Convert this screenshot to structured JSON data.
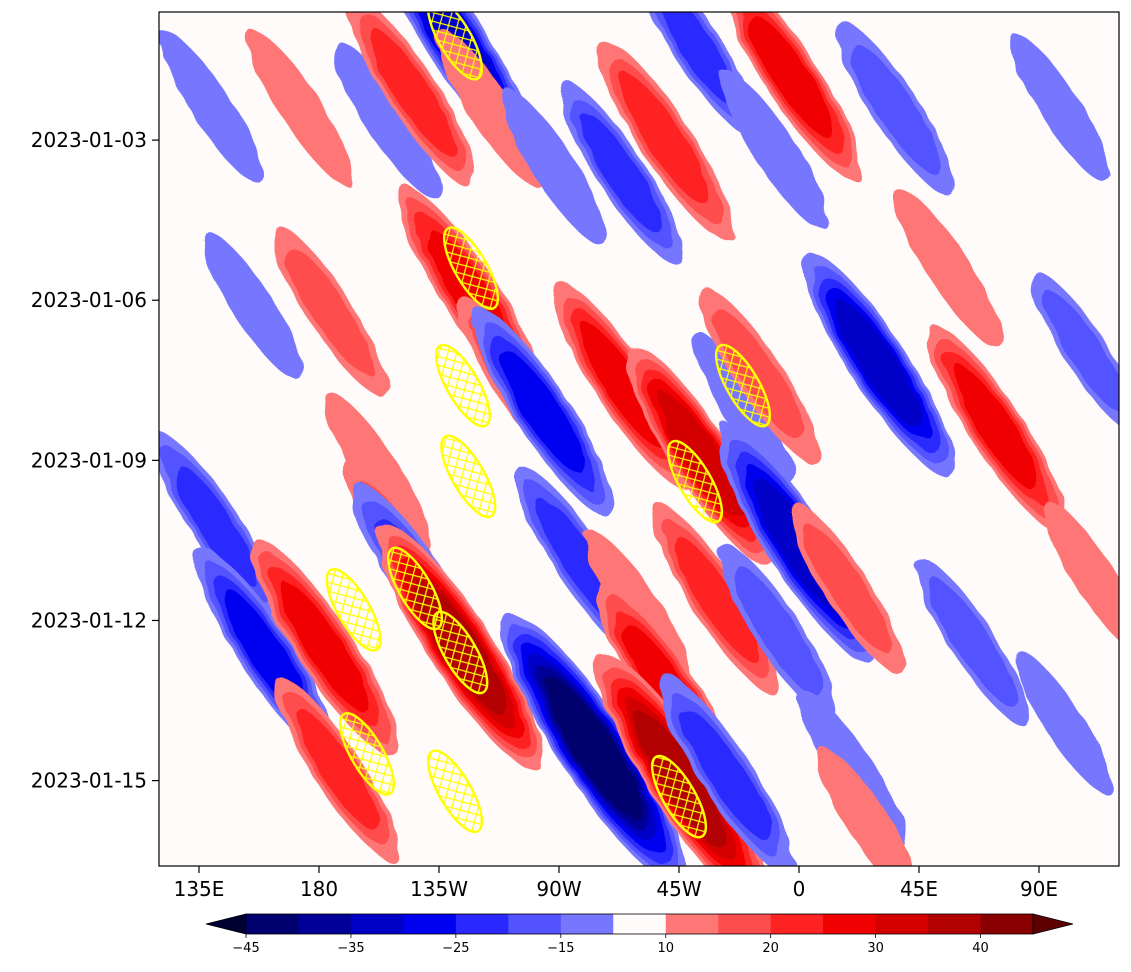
{
  "chart_data": {
    "type": "heatmap",
    "title": "",
    "xlabel": "",
    "ylabel": "",
    "x_tick_labels": [
      "135E",
      "180",
      "135W",
      "90W",
      "45W",
      "0",
      "45E",
      "90E"
    ],
    "x_tick_lon": [
      135,
      180,
      225,
      270,
      315,
      360,
      405,
      450
    ],
    "x_range_lon": [
      120,
      480
    ],
    "y_tick_labels": [
      "2023-01-03",
      "2023-01-06",
      "2023-01-09",
      "2023-01-12",
      "2023-01-15"
    ],
    "y_tick_day": [
      3,
      6,
      9,
      12,
      15
    ],
    "y_range_day": [
      0.6,
      16.6
    ],
    "colorbar": {
      "levels": [
        -45,
        -40,
        -35,
        -30,
        -25,
        -20,
        -15,
        -10,
        10,
        15,
        20,
        25,
        30,
        35,
        40,
        45
      ],
      "tick_labels": [
        "−45",
        "−35",
        "−25",
        "−15",
        "10",
        "20",
        "30",
        "40"
      ],
      "tick_values": [
        -45,
        -35,
        -25,
        -15,
        10,
        20,
        30,
        40
      ],
      "extend": "both",
      "colors": [
        "#000033",
        "#00006e",
        "#000099",
        "#0000c8",
        "#0000f0",
        "#2929ff",
        "#5252ff",
        "#7676ff",
        "#fffbfb",
        "#ff7676",
        "#ff4d4d",
        "#ff2222",
        "#f00000",
        "#d40000",
        "#b30000",
        "#8a0000",
        "#5c0000"
      ]
    },
    "hatch_color": "#ffff00",
    "features": [
      {
        "lon": 140,
        "day": 2.4,
        "value": -12
      },
      {
        "lon": 155,
        "day": 6.1,
        "value": -12
      },
      {
        "lon": 141,
        "day": 10.2,
        "value": -20
      },
      {
        "lon": 160,
        "day": 12.6,
        "value": -26
      },
      {
        "lon": 173,
        "day": 2.4,
        "value": 13
      },
      {
        "lon": 184,
        "day": 6.2,
        "value": 17
      },
      {
        "lon": 182,
        "day": 12.5,
        "value": 28
      },
      {
        "lon": 187,
        "day": 14.8,
        "value": 20
      },
      {
        "lon": 202,
        "day": 9.2,
        "value": 14
      },
      {
        "lon": 211,
        "day": 10.6,
        "value": 16
      },
      {
        "lon": 205,
        "day": 2.6,
        "value": -14
      },
      {
        "lon": 218,
        "day": 11.3,
        "value": -24
      },
      {
        "lon": 215,
        "day": 2.1,
        "value": 22
      },
      {
        "lon": 232,
        "day": 1.2,
        "value": -32
      },
      {
        "lon": 237,
        "day": 5.9,
        "value": 28
      },
      {
        "lon": 233,
        "day": 12.5,
        "value": 36
      },
      {
        "lon": 244,
        "day": 2.4,
        "value": 14
      },
      {
        "lon": 253,
        "day": 7.5,
        "value": 16
      },
      {
        "lon": 264,
        "day": 8.1,
        "value": -26
      },
      {
        "lon": 268,
        "day": 3.5,
        "value": -14
      },
      {
        "lon": 278,
        "day": 10.9,
        "value": -22
      },
      {
        "lon": 283,
        "day": 14.4,
        "value": -42
      },
      {
        "lon": 294,
        "day": 7.6,
        "value": 26
      },
      {
        "lon": 300,
        "day": 11.8,
        "value": 14
      },
      {
        "lon": 311,
        "day": 13.3,
        "value": 28
      },
      {
        "lon": 316,
        "day": 15.0,
        "value": 38
      },
      {
        "lon": 293,
        "day": 3.6,
        "value": -20
      },
      {
        "lon": 310,
        "day": 3.0,
        "value": 24
      },
      {
        "lon": 323,
        "day": 8.9,
        "value": 30
      },
      {
        "lon": 321,
        "day": 1.2,
        "value": -20
      },
      {
        "lon": 329,
        "day": 11.6,
        "value": 22
      },
      {
        "lon": 333,
        "day": 14.9,
        "value": -24
      },
      {
        "lon": 339,
        "day": 8.0,
        "value": -12
      },
      {
        "lon": 345,
        "day": 7.4,
        "value": 18
      },
      {
        "lon": 351,
        "day": 3.2,
        "value": -14
      },
      {
        "lon": 357,
        "day": 1.8,
        "value": 26
      },
      {
        "lon": 360,
        "day": 10.6,
        "value": -34
      },
      {
        "lon": 352,
        "day": 12.2,
        "value": -18
      },
      {
        "lon": 378,
        "day": 11.4,
        "value": 17
      },
      {
        "lon": 380,
        "day": 14.8,
        "value": -14
      },
      {
        "lon": 386,
        "day": 15.8,
        "value": 13
      },
      {
        "lon": 390,
        "day": 7.2,
        "value": -30
      },
      {
        "lon": 396,
        "day": 2.4,
        "value": -18
      },
      {
        "lon": 416,
        "day": 5.4,
        "value": 14
      },
      {
        "lon": 425,
        "day": 12.4,
        "value": -16
      },
      {
        "lon": 434,
        "day": 8.4,
        "value": 26
      },
      {
        "lon": 458,
        "day": 2.4,
        "value": -12
      },
      {
        "lon": 468,
        "day": 7.0,
        "value": -15
      },
      {
        "lon": 471,
        "day": 11.2,
        "value": 13
      },
      {
        "lon": 459,
        "day": 13.9,
        "value": -10
      }
    ],
    "hatched_regions": [
      {
        "lon": 231,
        "day": 1.1
      },
      {
        "lon": 237,
        "day": 5.4
      },
      {
        "lon": 234,
        "day": 7.6
      },
      {
        "lon": 236,
        "day": 9.3
      },
      {
        "lon": 193,
        "day": 11.8
      },
      {
        "lon": 216,
        "day": 11.4
      },
      {
        "lon": 233,
        "day": 12.6
      },
      {
        "lon": 231,
        "day": 15.2
      },
      {
        "lon": 321,
        "day": 9.4
      },
      {
        "lon": 339,
        "day": 7.6
      },
      {
        "lon": 315,
        "day": 15.3
      },
      {
        "lon": 198,
        "day": 14.5
      }
    ]
  }
}
